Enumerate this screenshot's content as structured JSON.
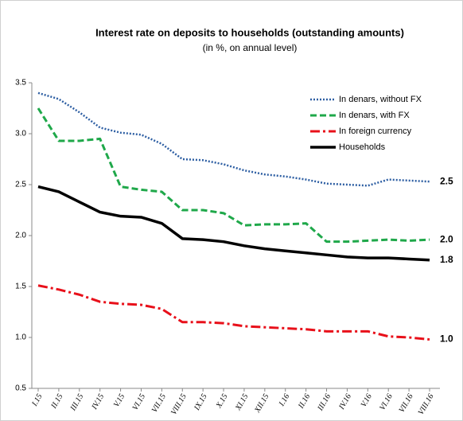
{
  "chart_data": {
    "type": "line",
    "title": "Interest rate on deposits to households (outstanding amounts)",
    "subtitle": "(in %, on annual level)",
    "categories": [
      "I.15",
      "II.15",
      "III.15",
      "IV.15",
      "V.15",
      "VI.15",
      "VII.15",
      "VIII.15",
      "IX.15",
      "X.15",
      "XI.15",
      "XII.15",
      "I.16",
      "II.16",
      "III.16",
      "IV.16",
      "V.16",
      "VI.16",
      "VII.16",
      "VIII.16"
    ],
    "series": [
      {
        "name": "In denars, without FX",
        "color": "#2e5fa3",
        "dash": "dotted",
        "values": [
          3.4,
          3.34,
          3.21,
          3.06,
          3.01,
          2.99,
          2.9,
          2.75,
          2.74,
          2.7,
          2.64,
          2.6,
          2.58,
          2.55,
          2.51,
          2.5,
          2.49,
          2.55,
          2.54,
          2.53
        ],
        "value_labels": [
          null,
          null,
          null,
          null,
          null,
          null,
          null,
          null,
          null,
          null,
          null,
          null,
          null,
          null,
          null,
          null,
          null,
          null,
          null,
          "2.5"
        ]
      },
      {
        "name": "In denars, with FX",
        "color": "#1fa84a",
        "dash": "dashed",
        "values": [
          3.25,
          2.93,
          2.93,
          2.95,
          2.48,
          2.45,
          2.43,
          2.25,
          2.25,
          2.22,
          2.1,
          2.11,
          2.11,
          2.12,
          1.94,
          1.94,
          1.95,
          1.96,
          1.95,
          1.96
        ],
        "value_labels": [
          null,
          null,
          null,
          null,
          null,
          null,
          null,
          null,
          null,
          null,
          null,
          null,
          null,
          null,
          null,
          null,
          null,
          null,
          null,
          "2.0"
        ]
      },
      {
        "name": "In foreign currency",
        "color": "#e8101a",
        "dash": "dashdot",
        "values": [
          1.51,
          1.47,
          1.42,
          1.35,
          1.33,
          1.32,
          1.28,
          1.15,
          1.15,
          1.14,
          1.11,
          1.1,
          1.09,
          1.08,
          1.06,
          1.06,
          1.06,
          1.01,
          1.0,
          0.98
        ],
        "value_labels": [
          null,
          null,
          null,
          null,
          null,
          null,
          null,
          null,
          null,
          null,
          null,
          null,
          null,
          null,
          null,
          null,
          null,
          null,
          null,
          "1.0"
        ]
      },
      {
        "name": "Households",
        "color": "#000000",
        "dash": "solid",
        "values": [
          2.48,
          2.43,
          2.33,
          2.23,
          2.19,
          2.18,
          2.12,
          1.97,
          1.96,
          1.94,
          1.9,
          1.87,
          1.85,
          1.83,
          1.81,
          1.79,
          1.78,
          1.78,
          1.77,
          1.76
        ],
        "value_labels": [
          null,
          null,
          null,
          null,
          null,
          null,
          null,
          null,
          null,
          null,
          null,
          null,
          null,
          null,
          null,
          null,
          null,
          null,
          null,
          "1.8"
        ]
      }
    ],
    "ylim": [
      0.5,
      3.5
    ],
    "yticks": [
      0.5,
      {
        "value": 1,
        "label": "1.0"
      },
      1.5,
      {
        "value": 2,
        "label": "2.0"
      },
      2.5,
      {
        "value": 3,
        "label": "3.0"
      },
      3.5
    ],
    "grid": false,
    "legend": "top-right"
  }
}
